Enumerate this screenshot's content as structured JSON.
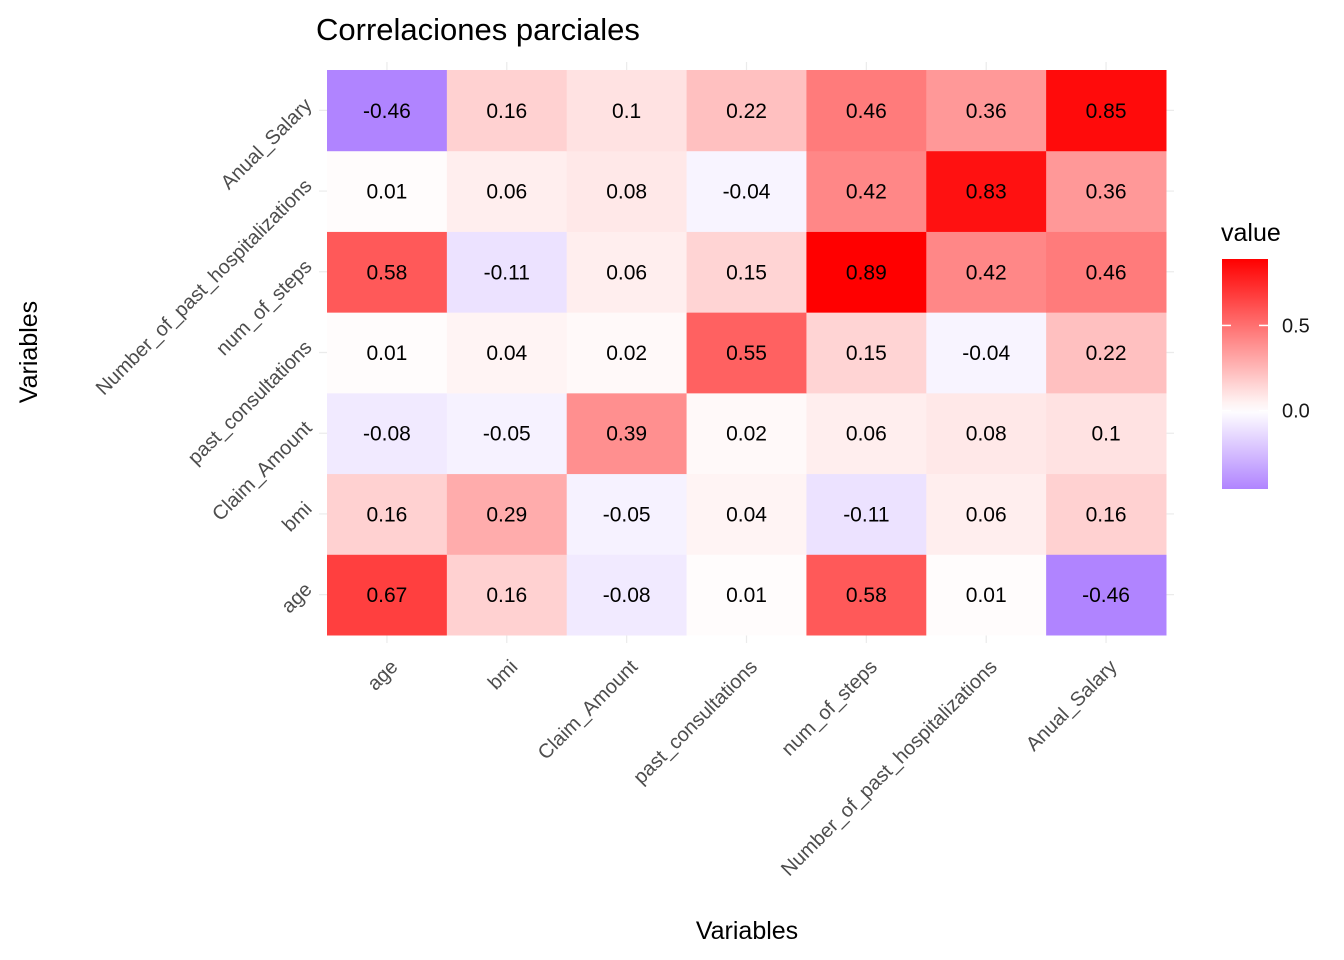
{
  "chart_data": {
    "type": "heatmap",
    "title": "Correlaciones parciales",
    "xlabel": "Variables",
    "ylabel": "Variables",
    "x_categories": [
      "age",
      "bmi",
      "Claim_Amount",
      "past_consultations",
      "num_of_steps",
      "Number_of_past_hospitalizations",
      "Anual_Salary"
    ],
    "y_categories": [
      "age",
      "bmi",
      "Claim_Amount",
      "past_consultations",
      "num_of_steps",
      "Number_of_past_hospitalizations",
      "Anual_Salary"
    ],
    "values": [
      [
        0.67,
        0.16,
        -0.08,
        0.01,
        0.58,
        0.01,
        -0.46
      ],
      [
        0.16,
        0.29,
        -0.05,
        0.04,
        -0.11,
        0.06,
        0.16
      ],
      [
        -0.08,
        -0.05,
        0.39,
        0.02,
        0.06,
        0.08,
        0.1
      ],
      [
        0.01,
        0.04,
        0.02,
        0.55,
        0.15,
        -0.04,
        0.22
      ],
      [
        0.58,
        -0.11,
        0.06,
        0.15,
        0.89,
        0.42,
        0.46
      ],
      [
        0.01,
        0.06,
        0.08,
        -0.04,
        0.42,
        0.83,
        0.36
      ],
      [
        -0.46,
        0.16,
        0.1,
        0.22,
        0.46,
        0.36,
        0.85
      ]
    ],
    "value_labels": [
      [
        "0.67",
        "0.16",
        "-0.08",
        "0.01",
        "0.58",
        "0.01",
        "-0.46"
      ],
      [
        "0.16",
        "0.29",
        "-0.05",
        "0.04",
        "-0.11",
        "0.06",
        "0.16"
      ],
      [
        "-0.08",
        "-0.05",
        "0.39",
        "0.02",
        "0.06",
        "0.08",
        "0.1"
      ],
      [
        "0.01",
        "0.04",
        "0.02",
        "0.55",
        "0.15",
        "-0.04",
        "0.22"
      ],
      [
        "0.58",
        "-0.11",
        "0.06",
        "0.15",
        "0.89",
        "0.42",
        "0.46"
      ],
      [
        "0.01",
        "0.06",
        "0.08",
        "-0.04",
        "0.42",
        "0.83",
        "0.36"
      ],
      [
        "-0.46",
        "0.16",
        "0.1",
        "0.22",
        "0.46",
        "0.36",
        "0.85"
      ]
    ],
    "legend": {
      "title": "value",
      "position": "right",
      "range": [
        -0.46,
        0.89
      ],
      "breaks": [
        0.0,
        0.5
      ],
      "break_labels": [
        "0.0",
        "0.5"
      ],
      "low_color": "#b084ff",
      "mid_color": "#ffffff",
      "high_color": "#ff0000",
      "midpoint": 0
    },
    "grid": true
  }
}
